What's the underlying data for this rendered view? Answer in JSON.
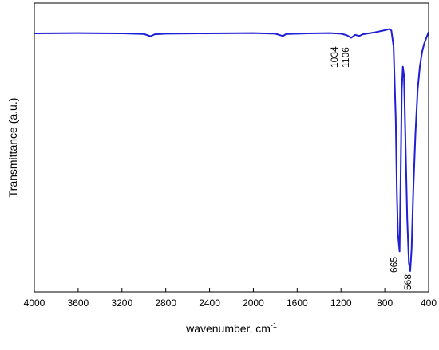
{
  "chart_data": {
    "type": "line",
    "x_label": "wavenumber, cm",
    "x_label_sup": "-1",
    "y_label": "Transmittance (a.u.)",
    "x": [
      4000,
      3600,
      3200,
      3000,
      2940,
      2900,
      2800,
      2400,
      2000,
      1800,
      1730,
      1700,
      1500,
      1300,
      1200,
      1150,
      1106,
      1070,
      1034,
      1000,
      900,
      800,
      760,
      740,
      720,
      700,
      690,
      680,
      665,
      655,
      645,
      635,
      625,
      610,
      595,
      580,
      568,
      555,
      540,
      520,
      500,
      480,
      460,
      440,
      420,
      400
    ],
    "series": [
      {
        "color": "#1f1fd6",
        "values": [
          89.5,
          89.6,
          89.5,
          89.3,
          88.5,
          89.2,
          89.4,
          89.5,
          89.6,
          89.4,
          88.6,
          89.3,
          89.5,
          89.6,
          89.4,
          88.9,
          88.0,
          89.0,
          88.6,
          89.2,
          89.8,
          90.6,
          91.0,
          90.5,
          85,
          60,
          35,
          20,
          14,
          40,
          70,
          78,
          75,
          50,
          25,
          10,
          7.2,
          15,
          35,
          55,
          70,
          78,
          83,
          86,
          88,
          90
        ]
      }
    ],
    "xlim": [
      4000,
      400
    ],
    "ylim": [
      0,
      100
    ],
    "xticks": [
      4000,
      3600,
      3200,
      2800,
      2400,
      2000,
      1600,
      1200,
      800,
      400
    ],
    "annotations": [
      {
        "text": "1034",
        "x": 1034
      },
      {
        "text": "1106",
        "x": 1106
      },
      {
        "text": "665",
        "x": 665
      },
      {
        "text": "568",
        "x": 568
      }
    ]
  }
}
